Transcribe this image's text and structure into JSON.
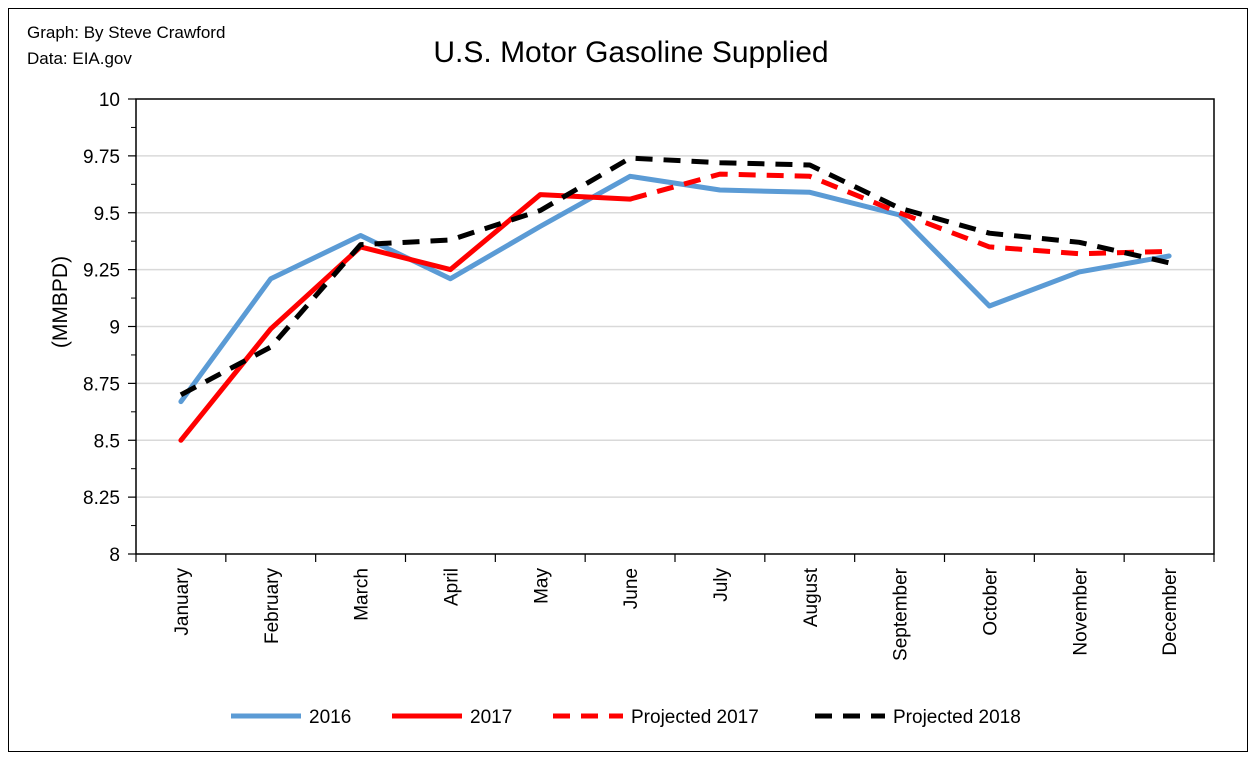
{
  "credits": [
    "Graph: By Steve Crawford",
    "Data: EIA.gov"
  ],
  "chart_data": {
    "type": "line",
    "title": "U.S. Motor Gasoline Supplied",
    "xlabel": "",
    "ylabel": "(MMBPD)",
    "ylim": [
      8,
      10
    ],
    "yticks": [
      "8",
      "8.25",
      "8.5",
      "8.75",
      "9",
      "9.25",
      "9.5",
      "9.75",
      "10"
    ],
    "yticks_values": [
      8,
      8.25,
      8.5,
      8.75,
      9,
      9.25,
      9.5,
      9.75,
      10
    ],
    "grid": true,
    "legend_position": "bottom",
    "categories": [
      "January",
      "February",
      "March",
      "April",
      "May",
      "June",
      "July",
      "August",
      "September",
      "October",
      "November",
      "December"
    ],
    "series": [
      {
        "name": "2016",
        "color": "#5b9bd5",
        "style": "solid",
        "values": [
          8.67,
          9.21,
          9.4,
          9.21,
          9.44,
          9.66,
          9.6,
          9.59,
          9.49,
          9.09,
          9.24,
          9.31
        ]
      },
      {
        "name": "2017",
        "color": "#ff0000",
        "style": "solid",
        "values": [
          8.5,
          8.99,
          9.35,
          9.25,
          9.58,
          9.56,
          null,
          null,
          null,
          null,
          null,
          null
        ]
      },
      {
        "name": "Projected 2017",
        "color": "#ff0000",
        "style": "dashed",
        "values": [
          null,
          null,
          null,
          null,
          null,
          9.56,
          9.67,
          9.66,
          9.5,
          9.35,
          9.32,
          9.33
        ]
      },
      {
        "name": "Projected 2018",
        "color": "#000000",
        "style": "dashed",
        "values": [
          8.7,
          8.91,
          9.36,
          9.38,
          9.51,
          9.74,
          9.72,
          9.71,
          9.52,
          9.41,
          9.37,
          9.28
        ]
      }
    ]
  }
}
